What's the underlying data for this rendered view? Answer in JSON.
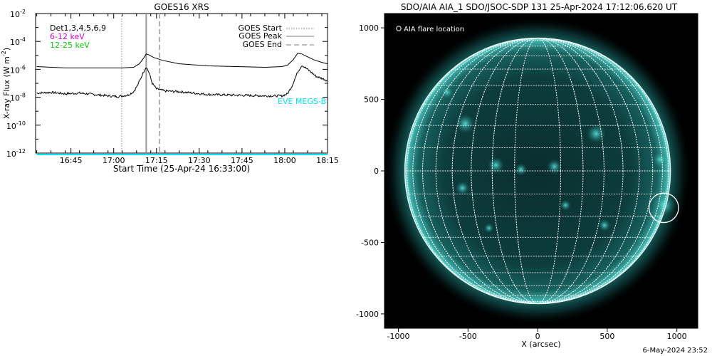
{
  "footer_timestamp": "6-May-2024 23:52",
  "chart_data": [
    {
      "type": "line",
      "title": "GOES16 XRS",
      "xlabel": "Start Time (25-Apr-24 16:33:00)",
      "ylabel": "X-ray Flux (W m",
      "ylabel_sup": "-2",
      "ylabel_tail": ")",
      "y_log": true,
      "ylim_exp": [
        -12,
        -2
      ],
      "y_ticks": [
        {
          "exp": -12,
          "base": "10",
          "sup": "-12"
        },
        {
          "exp": -10,
          "base": "10",
          "sup": "-10"
        },
        {
          "exp": -8,
          "base": "10",
          "sup": "-8"
        },
        {
          "exp": -6,
          "base": "10",
          "sup": "-6"
        },
        {
          "exp": -4,
          "base": "10",
          "sup": "-4"
        },
        {
          "exp": -2,
          "base": "10",
          "sup": "-2"
        }
      ],
      "xlim_min": [
        -0.4,
        102
      ],
      "x_ticks": [
        {
          "min": 12,
          "label": "16:45"
        },
        {
          "min": 27,
          "label": "17:00"
        },
        {
          "min": 42,
          "label": "17:15"
        },
        {
          "min": 57,
          "label": "17:30"
        },
        {
          "min": 72,
          "label": "17:45"
        },
        {
          "min": 87,
          "label": "18:00"
        },
        {
          "min": 102,
          "label": "18:15"
        }
      ],
      "flare_lines": {
        "start_min": 29.8,
        "peak_min": 38.4,
        "end_min": 43.1
      },
      "legend": {
        "start": "GOES Start",
        "peak": "GOES Peak",
        "end": "GOES End"
      },
      "channel_labels": [
        {
          "text": "Det1,3,4,5,6,9",
          "color": "#000000"
        },
        {
          "text": "6-12 keV",
          "color": "#d400d4"
        },
        {
          "text": "12-25 keV",
          "color": "#00cc00"
        }
      ],
      "eve_label": {
        "text": "EVE MEGS-B",
        "color": "#00e5ff"
      },
      "series": [
        {
          "color": "#000000",
          "x": [
            0,
            10,
            20,
            30,
            34,
            36,
            37.5,
            38.4,
            39.2,
            41,
            44,
            50,
            60,
            70,
            80,
            86,
            88,
            90,
            91.5,
            93,
            95,
            97,
            100,
            102
          ],
          "y": [
            -5.8,
            -5.9,
            -5.9,
            -5.9,
            -5.85,
            -5.6,
            -5.2,
            -4.9,
            -4.95,
            -5.15,
            -5.35,
            -5.6,
            -5.75,
            -5.8,
            -5.85,
            -5.8,
            -5.7,
            -5.3,
            -4.85,
            -4.9,
            -5.1,
            -5.3,
            -5.5,
            -5.6
          ]
        },
        {
          "color": "#000000",
          "noisy": true,
          "x": [
            0,
            5,
            10,
            15,
            20,
            25,
            28,
            32,
            34,
            35.5,
            37,
            38.4,
            39.5,
            40.5,
            42,
            45,
            50,
            55,
            60,
            70,
            80,
            86,
            88,
            89.5,
            91.5,
            93,
            95,
            98,
            102
          ],
          "y": [
            -7.7,
            -7.65,
            -7.75,
            -7.7,
            -7.8,
            -7.9,
            -7.95,
            -7.85,
            -7.6,
            -7.1,
            -6.4,
            -5.8,
            -6.3,
            -7.0,
            -7.4,
            -7.55,
            -7.6,
            -7.7,
            -7.8,
            -7.85,
            -7.9,
            -7.9,
            -7.75,
            -7.2,
            -6.2,
            -5.7,
            -6.0,
            -6.5,
            -6.8
          ]
        },
        {
          "color": "#00e5ff",
          "x": [
            0,
            102
          ],
          "y": [
            -12.1,
            -12.1
          ]
        }
      ]
    },
    {
      "type": "image",
      "title": "SDO/AIA AIA_1 SDO/JSOC-SDP 131 25-Apr-2024 17:12:06.620 UT",
      "xlabel": "X (arcsec)",
      "xlim": [
        -1100,
        1150
      ],
      "ylim": [
        -1100,
        1100
      ],
      "x_ticks": [
        -1000,
        -500,
        0,
        500,
        1000
      ],
      "y_ticks": [
        -1000,
        -500,
        0,
        500,
        1000
      ],
      "solar_radius_arcsec": 954,
      "grid_step_deg": 10,
      "flare_marker": {
        "x": 906,
        "y": -258,
        "r": 106
      },
      "legend_label": "AIA flare location",
      "colors": {
        "disk_base": "#0b3a3b",
        "bright": "#4fe0d8",
        "grid": "#ffffff"
      }
    }
  ]
}
